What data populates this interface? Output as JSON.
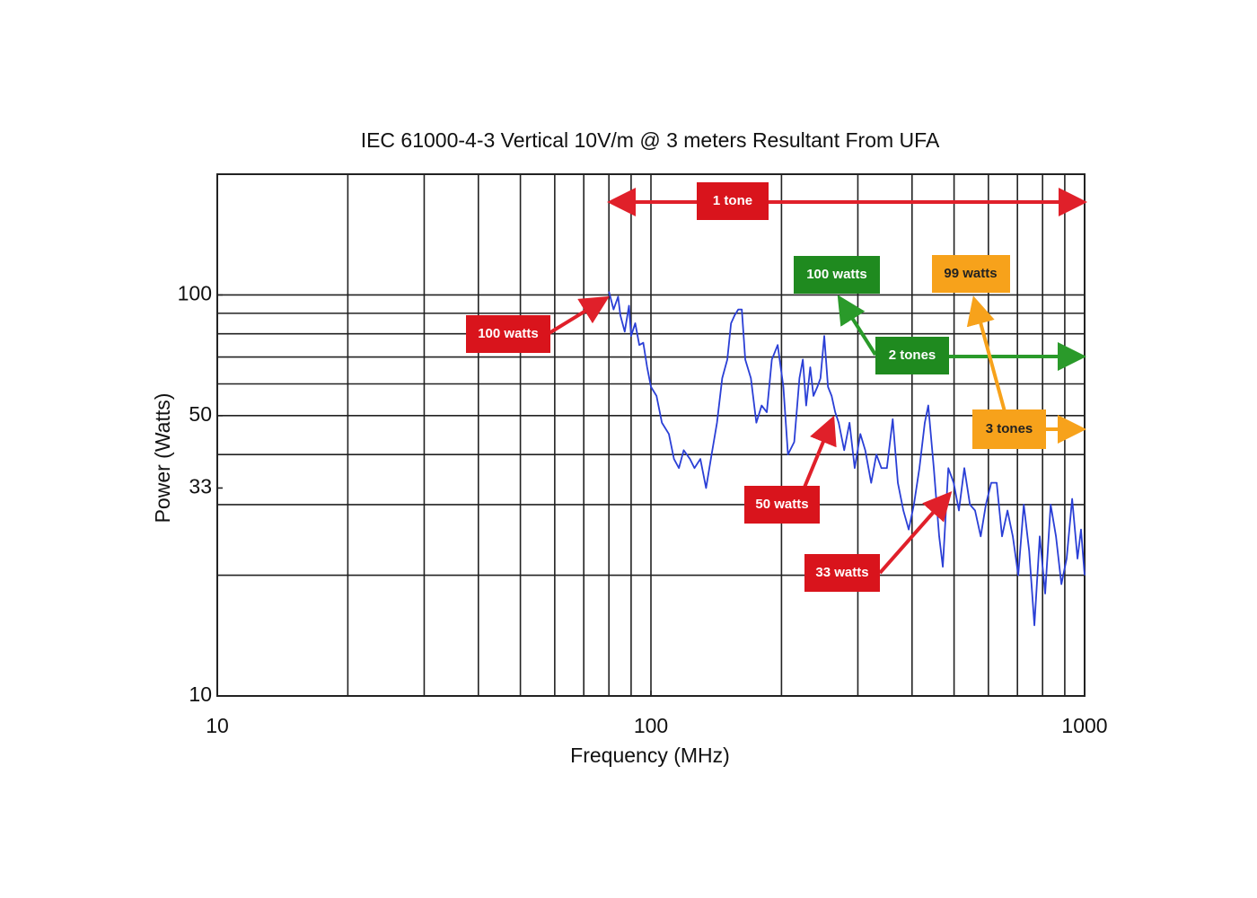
{
  "chart_data": {
    "type": "line",
    "title": "IEC 61000-4-3 Vertical 10V/m @ 3 meters Resultant From UFA",
    "x_label": "Frequency (MHz)",
    "y_label": "Power (Watts)",
    "xscale": "log",
    "yscale": "log",
    "xlim": [
      10,
      1000
    ],
    "ylim": [
      10,
      200
    ],
    "xticks": [
      10,
      100,
      1000
    ],
    "yticks": [
      10,
      33,
      50,
      100
    ],
    "xgrid": [
      20,
      30,
      40,
      50,
      60,
      70,
      80,
      90,
      100,
      200,
      300,
      400,
      500,
      600,
      700,
      800,
      900
    ],
    "ygrid": [
      20,
      30,
      40,
      50,
      60,
      70,
      80,
      90,
      100
    ],
    "grid": true,
    "x": [
      80,
      82,
      84,
      85,
      87,
      89,
      90,
      92,
      94,
      96,
      98,
      100,
      103,
      106,
      110,
      113,
      116,
      119,
      123,
      126,
      130,
      134,
      138,
      142,
      146,
      150,
      153,
      156,
      159,
      162,
      165,
      170,
      175,
      180,
      185,
      190,
      196,
      202,
      207,
      214,
      220,
      224,
      228,
      233,
      237,
      242,
      246,
      251,
      256,
      261,
      266,
      271,
      279,
      287,
      295,
      304,
      312,
      322,
      331,
      340,
      350,
      361,
      371,
      382,
      393,
      404,
      416,
      428,
      436,
      449,
      462,
      471,
      485,
      499,
      513,
      528,
      544,
      559,
      576,
      592,
      609,
      627,
      645,
      664,
      683,
      703,
      724,
      745,
      766,
      788,
      811,
      835,
      859,
      884,
      909,
      936,
      963,
      981,
      1000
    ],
    "series": [
      {
        "color": "#2a3fd6",
        "values": [
          102,
          92,
          99,
          89,
          81,
          94,
          79,
          85,
          75,
          76,
          66,
          59,
          56,
          48,
          45,
          39,
          37,
          41,
          39,
          37,
          39,
          33,
          40,
          48,
          62,
          69,
          85,
          89,
          92,
          92,
          69,
          62,
          48,
          53,
          51,
          69,
          75,
          59,
          40,
          43,
          62,
          69,
          53,
          66,
          56,
          59,
          62,
          79,
          59,
          56,
          51,
          48,
          41,
          48,
          37,
          45,
          41,
          34,
          40,
          37,
          37,
          49,
          34,
          29,
          26,
          30,
          37,
          48,
          53,
          37,
          25,
          21,
          37,
          34,
          29,
          37,
          30,
          29,
          25,
          30,
          34,
          34,
          25,
          29,
          25,
          20,
          30,
          23,
          15,
          25,
          18,
          30,
          25,
          19,
          22,
          31,
          22,
          26,
          20
        ]
      }
    ],
    "annotations": [
      "1 tone",
      "100 watts",
      "99 watts",
      "2 tones",
      "3 tones",
      "100 watts",
      "50 watts",
      "33 watts"
    ]
  }
}
